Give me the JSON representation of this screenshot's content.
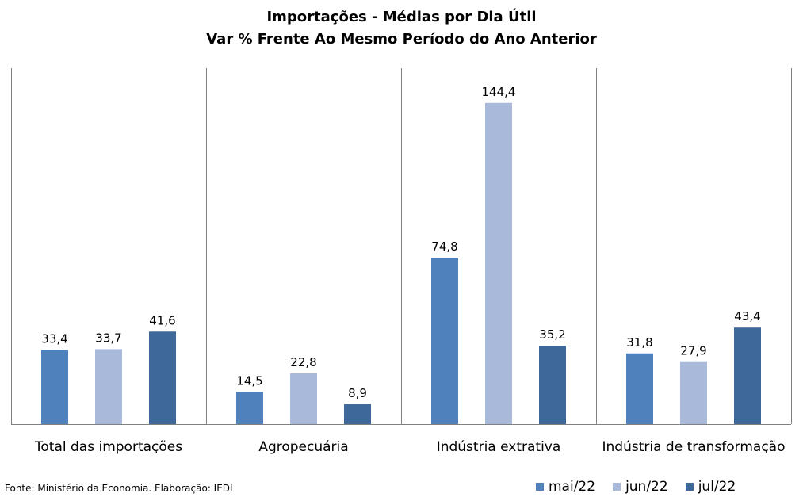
{
  "chart_data": {
    "type": "bar",
    "title": "Importações - Médias por Dia Útil",
    "subtitle": "Var % Frente Ao Mesmo Período do Ano Anterior",
    "categories": [
      "Total das importações",
      "Agropecuária",
      "Indústria extrativa",
      "Indústria de transformação"
    ],
    "series": [
      {
        "name": "mai/22",
        "color": "#4f81bd",
        "values": [
          33.4,
          14.5,
          74.8,
          31.8
        ],
        "labels": [
          "33,4",
          "14,5",
          "74,8",
          "31,8"
        ]
      },
      {
        "name": "jun/22",
        "color": "#a9b9d9",
        "values": [
          33.7,
          22.8,
          144.4,
          27.9
        ],
        "labels": [
          "33,7",
          "22,8",
          "144,4",
          "27,9"
        ]
      },
      {
        "name": "jul/22",
        "color": "#3d6899",
        "values": [
          41.6,
          8.9,
          35.2,
          43.4
        ],
        "labels": [
          "41,6",
          "8,9",
          "35,2",
          "43,4"
        ]
      }
    ],
    "ylim": [
      0,
      160
    ],
    "grid": false,
    "legend": "bottom-right"
  },
  "source_note": "Fonte: Ministério da Economia. Elaboração: IEDI"
}
